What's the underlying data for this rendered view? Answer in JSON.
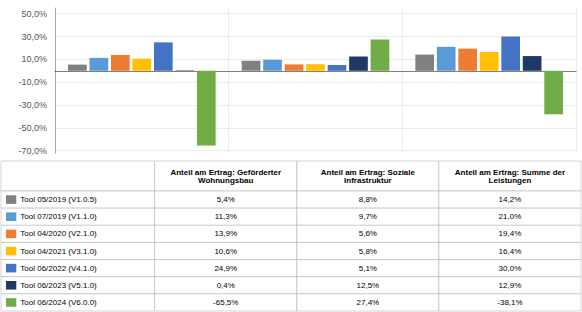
{
  "chart_data": {
    "type": "bar",
    "categories": [
      "Anteil am Ertrag: Geförderter\nWohnungsbau",
      "Anteil am Ertrag: Soziale\nInfrastruktur",
      "Anteil am Ertrag: Summe der\nLeistungen"
    ],
    "series": [
      {
        "name": "Tool 05/2019 (V1.0.5)",
        "color": "#808080",
        "values": [
          5.4,
          8.8,
          14.2
        ],
        "value_labels": [
          "5,4%",
          "8,8%",
          "14,2%"
        ]
      },
      {
        "name": "Tool 07/2019 (V1.1.0)",
        "color": "#5B9BD5",
        "values": [
          11.3,
          9.7,
          21.0
        ],
        "value_labels": [
          "11,3%",
          "9,7%",
          "21,0%"
        ]
      },
      {
        "name": "Tool 04/2020 (V2.1.0)",
        "color": "#ED7D31",
        "values": [
          13.9,
          5.6,
          19.4
        ],
        "value_labels": [
          "13,9%",
          "5,6%",
          "19,4%"
        ]
      },
      {
        "name": "Tool 04/2021 (V3.1.0)",
        "color": "#FFC000",
        "values": [
          10.6,
          5.8,
          16.4
        ],
        "value_labels": [
          "10,6%",
          "5,8%",
          "16,4%"
        ]
      },
      {
        "name": "Tool 06/2022 (V4.1.0)",
        "color": "#4472C4",
        "values": [
          24.9,
          5.1,
          30.0
        ],
        "value_labels": [
          "24,9%",
          "5,1%",
          "30,0%"
        ]
      },
      {
        "name": "Tool 06/2023 (V5.1.0)",
        "color": "#203864",
        "values": [
          0.4,
          12.5,
          12.9
        ],
        "value_labels": [
          "0,4%",
          "12,5%",
          "12,9%"
        ]
      },
      {
        "name": "Tool 06/2024 (V6.0.0)",
        "color": "#70AD47",
        "values": [
          -65.5,
          27.4,
          -38.1
        ],
        "value_labels": [
          "-65,5%",
          "27,4%",
          "-38,1%"
        ]
      }
    ],
    "ylim": [
      -72,
      55
    ],
    "yticks": [
      {
        "value": -70,
        "label": "-70,0%"
      },
      {
        "value": -50,
        "label": "-50,0%"
      },
      {
        "value": -30,
        "label": "-30,0%"
      },
      {
        "value": -10,
        "label": "-10,0%"
      },
      {
        "value": 10,
        "label": "10,0%"
      },
      {
        "value": 30,
        "label": "30,0%"
      },
      {
        "value": 50,
        "label": "50,0%"
      }
    ],
    "grid": true,
    "tick_labels": "y"
  }
}
